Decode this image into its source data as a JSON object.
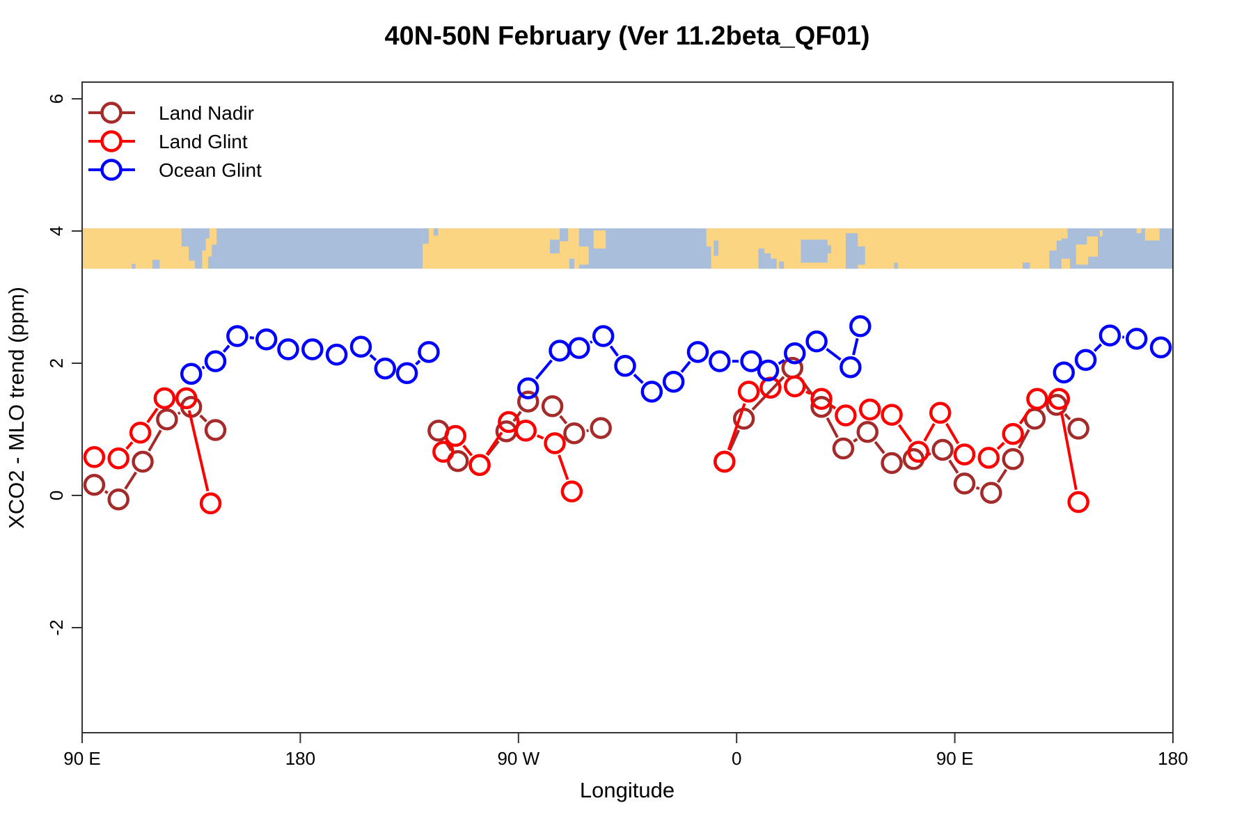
{
  "chart_data": {
    "type": "line",
    "title": "40N-50N February (Ver 11.2beta_QF01)",
    "xlabel": "Longitude",
    "ylabel": "XCO2 - MLO trend (ppm)",
    "x_axis": {
      "note": "longitude axis wraps eastward from 90E; v = degrees east of 90E, range 0-450",
      "ticks": [
        {
          "v": 0,
          "label": "90 E"
        },
        {
          "v": 90,
          "label": "180"
        },
        {
          "v": 180,
          "label": "90 W"
        },
        {
          "v": 270,
          "label": "0"
        },
        {
          "v": 360,
          "label": "90 E"
        },
        {
          "v": 450,
          "label": "180"
        }
      ]
    },
    "y_axis": {
      "ticks": [
        {
          "value": 6,
          "label": "6"
        },
        {
          "value": 4,
          "label": "4"
        },
        {
          "value": 2,
          "label": "2"
        },
        {
          "value": 0,
          "label": "0"
        },
        {
          "value": -2,
          "label": "-2"
        }
      ],
      "range": [
        -3.6,
        6.25
      ]
    },
    "map_band": {
      "description": "40N-50N world-map latitude strip drawn across the plot near y=3.4-4.05 ppm",
      "value_top": 4.04,
      "value_bottom": 3.43,
      "ocean_color": "#a8bedb",
      "land_color": "#fbd581",
      "land_rects": [
        {
          "v0": 0,
          "v1": 41,
          "t0": 0,
          "t1": 1
        },
        {
          "v0": 41,
          "v1": 44,
          "t0": 0.45,
          "t1": 1
        },
        {
          "v0": 44,
          "v1": 46.5,
          "t0": 0.8,
          "t1": 1
        },
        {
          "v0": 49.5,
          "v1": 52,
          "t0": 0.55,
          "t1": 1
        },
        {
          "v0": 51,
          "v1": 53.5,
          "t0": 0.25,
          "t1": 0.7
        },
        {
          "v0": 52.5,
          "v1": 55.5,
          "t0": 0,
          "t1": 0.4
        },
        {
          "v0": 140.5,
          "v1": 205,
          "t0": 0,
          "t1": 1
        },
        {
          "v0": 205,
          "v1": 209,
          "t0": 0.45,
          "t1": 0.9
        },
        {
          "v0": 211,
          "v1": 216,
          "t0": 0.05,
          "t1": 0.5
        },
        {
          "v0": 257.5,
          "v1": 260,
          "t0": 0,
          "t1": 0.45
        },
        {
          "v0": 259.5,
          "v1": 404,
          "t0": 0,
          "t1": 1
        },
        {
          "v0": 404,
          "v1": 406.5,
          "t0": 0,
          "t1": 0.25
        },
        {
          "v0": 404,
          "v1": 407.5,
          "t0": 0.75,
          "t1": 1
        },
        {
          "v0": 410,
          "v1": 415,
          "t0": 0.4,
          "t1": 0.9
        },
        {
          "v0": 414.5,
          "v1": 419,
          "t0": 0.2,
          "t1": 0.7
        },
        {
          "v0": 419.8,
          "v1": 421,
          "t0": 0.05,
          "t1": 0.2
        },
        {
          "v0": 435,
          "v1": 437,
          "t0": 0,
          "t1": 0.12
        },
        {
          "v0": 438.5,
          "v1": 444.5,
          "t0": 0,
          "t1": 0.3
        }
      ],
      "sea_rects": [
        {
          "v0": 20.5,
          "v1": 22,
          "t0": 0.88,
          "t1": 1
        },
        {
          "v0": 29,
          "v1": 32,
          "t0": 0.78,
          "t1": 1
        },
        {
          "v0": 140.5,
          "v1": 143,
          "t0": 0,
          "t1": 0.38
        },
        {
          "v0": 145,
          "v1": 146.8,
          "t0": 0,
          "t1": 0.18
        },
        {
          "v0": 193,
          "v1": 197,
          "t0": 0.28,
          "t1": 0.62
        },
        {
          "v0": 197,
          "v1": 200.5,
          "t0": 0,
          "t1": 0.32
        },
        {
          "v0": 201,
          "v1": 203,
          "t0": 0.75,
          "t1": 1
        },
        {
          "v0": 260.5,
          "v1": 262.5,
          "t0": 0.3,
          "t1": 0.68
        },
        {
          "v0": 279,
          "v1": 281.5,
          "t0": 0.5,
          "t1": 1
        },
        {
          "v0": 281.5,
          "v1": 284,
          "t0": 0.62,
          "t1": 1
        },
        {
          "v0": 284,
          "v1": 286.5,
          "t0": 0.75,
          "t1": 1
        },
        {
          "v0": 287.5,
          "v1": 289.5,
          "t0": 0.82,
          "t1": 1
        },
        {
          "v0": 296.5,
          "v1": 307.5,
          "t0": 0.28,
          "t1": 0.85
        },
        {
          "v0": 307.5,
          "v1": 309,
          "t0": 0.42,
          "t1": 0.62
        },
        {
          "v0": 315,
          "v1": 320,
          "t0": 0.12,
          "t1": 1
        },
        {
          "v0": 320,
          "v1": 323,
          "t0": 0.45,
          "t1": 0.9
        },
        {
          "v0": 335,
          "v1": 336.5,
          "t0": 0.85,
          "t1": 1
        },
        {
          "v0": 388,
          "v1": 391,
          "t0": 0.85,
          "t1": 1
        },
        {
          "v0": 399,
          "v1": 402,
          "t0": 0.55,
          "t1": 1
        },
        {
          "v0": 402,
          "v1": 404,
          "t0": 0.3,
          "t1": 1
        }
      ]
    },
    "series": [
      {
        "name": "Land Nadir",
        "color": "#A52A2A",
        "segments": [
          [
            [
              5,
              0.16
            ],
            [
              15,
              -0.06
            ],
            [
              25,
              0.51
            ],
            [
              35,
              1.15
            ],
            [
              45,
              1.34
            ],
            [
              55,
              0.99
            ]
          ],
          [
            [
              147,
              0.98
            ],
            [
              155,
              0.52
            ],
            [
              164,
              0.46
            ],
            [
              175,
              0.97
            ],
            [
              184,
              1.42
            ],
            [
              194,
              1.35
            ],
            [
              203,
              0.94
            ],
            [
              214,
              1.02
            ]
          ],
          [
            [
              265,
              0.51
            ],
            [
              273,
              1.16
            ],
            [
              293,
              1.93
            ],
            [
              305,
              1.34
            ],
            [
              314,
              0.71
            ],
            [
              324,
              0.96
            ],
            [
              334,
              0.49
            ],
            [
              343,
              0.55
            ],
            [
              355,
              0.69
            ],
            [
              364,
              0.18
            ],
            [
              375,
              0.04
            ],
            [
              384,
              0.55
            ],
            [
              393,
              1.16
            ],
            [
              402,
              1.37
            ],
            [
              411,
              1.01
            ]
          ]
        ]
      },
      {
        "name": "Land Glint",
        "color": "#FF0000",
        "segments": [
          [
            [
              5,
              0.58
            ],
            [
              15,
              0.56
            ],
            [
              24,
              0.95
            ],
            [
              34,
              1.47
            ],
            [
              43,
              1.47
            ],
            [
              53,
              -0.12
            ]
          ],
          [
            [
              149,
              0.66
            ],
            [
              154,
              0.9
            ],
            [
              164,
              0.46
            ],
            [
              176,
              1.11
            ],
            [
              183,
              0.98
            ],
            [
              195,
              0.79
            ],
            [
              202,
              0.06
            ]
          ],
          [
            [
              265,
              0.51
            ],
            [
              275,
              1.57
            ],
            [
              284,
              1.63
            ],
            [
              294,
              1.65
            ],
            [
              305,
              1.46
            ],
            [
              315,
              1.21
            ],
            [
              325,
              1.3
            ],
            [
              334,
              1.22
            ],
            [
              345,
              0.66
            ],
            [
              354,
              1.25
            ],
            [
              364,
              0.62
            ],
            [
              374,
              0.57
            ],
            [
              384,
              0.93
            ],
            [
              394,
              1.46
            ],
            [
              403,
              1.46
            ],
            [
              411,
              -0.1
            ]
          ]
        ]
      },
      {
        "name": "Ocean Glint",
        "color": "#0000FF",
        "segments": [
          [
            [
              45,
              1.84
            ],
            [
              55,
              2.03
            ],
            [
              64,
              2.41
            ],
            [
              76,
              2.36
            ],
            [
              85,
              2.21
            ],
            [
              95,
              2.21
            ],
            [
              105,
              2.13
            ],
            [
              115,
              2.25
            ],
            [
              125,
              1.92
            ],
            [
              134,
              1.85
            ],
            [
              143,
              2.17
            ]
          ],
          [
            [
              184,
              1.62
            ],
            [
              197,
              2.19
            ],
            [
              205,
              2.23
            ],
            [
              215,
              2.41
            ],
            [
              224,
              1.96
            ],
            [
              235,
              1.57
            ],
            [
              244,
              1.72
            ],
            [
              254,
              2.17
            ],
            [
              263,
              2.03
            ],
            [
              276,
              2.03
            ],
            [
              283,
              1.89
            ],
            [
              294,
              2.15
            ],
            [
              303,
              2.33
            ],
            [
              317,
              1.94
            ],
            [
              321,
              2.56
            ]
          ],
          [
            [
              405,
              1.86
            ],
            [
              414,
              2.05
            ],
            [
              424,
              2.42
            ],
            [
              435,
              2.37
            ],
            [
              445,
              2.24
            ]
          ]
        ]
      }
    ],
    "legend_position": "top-left"
  }
}
